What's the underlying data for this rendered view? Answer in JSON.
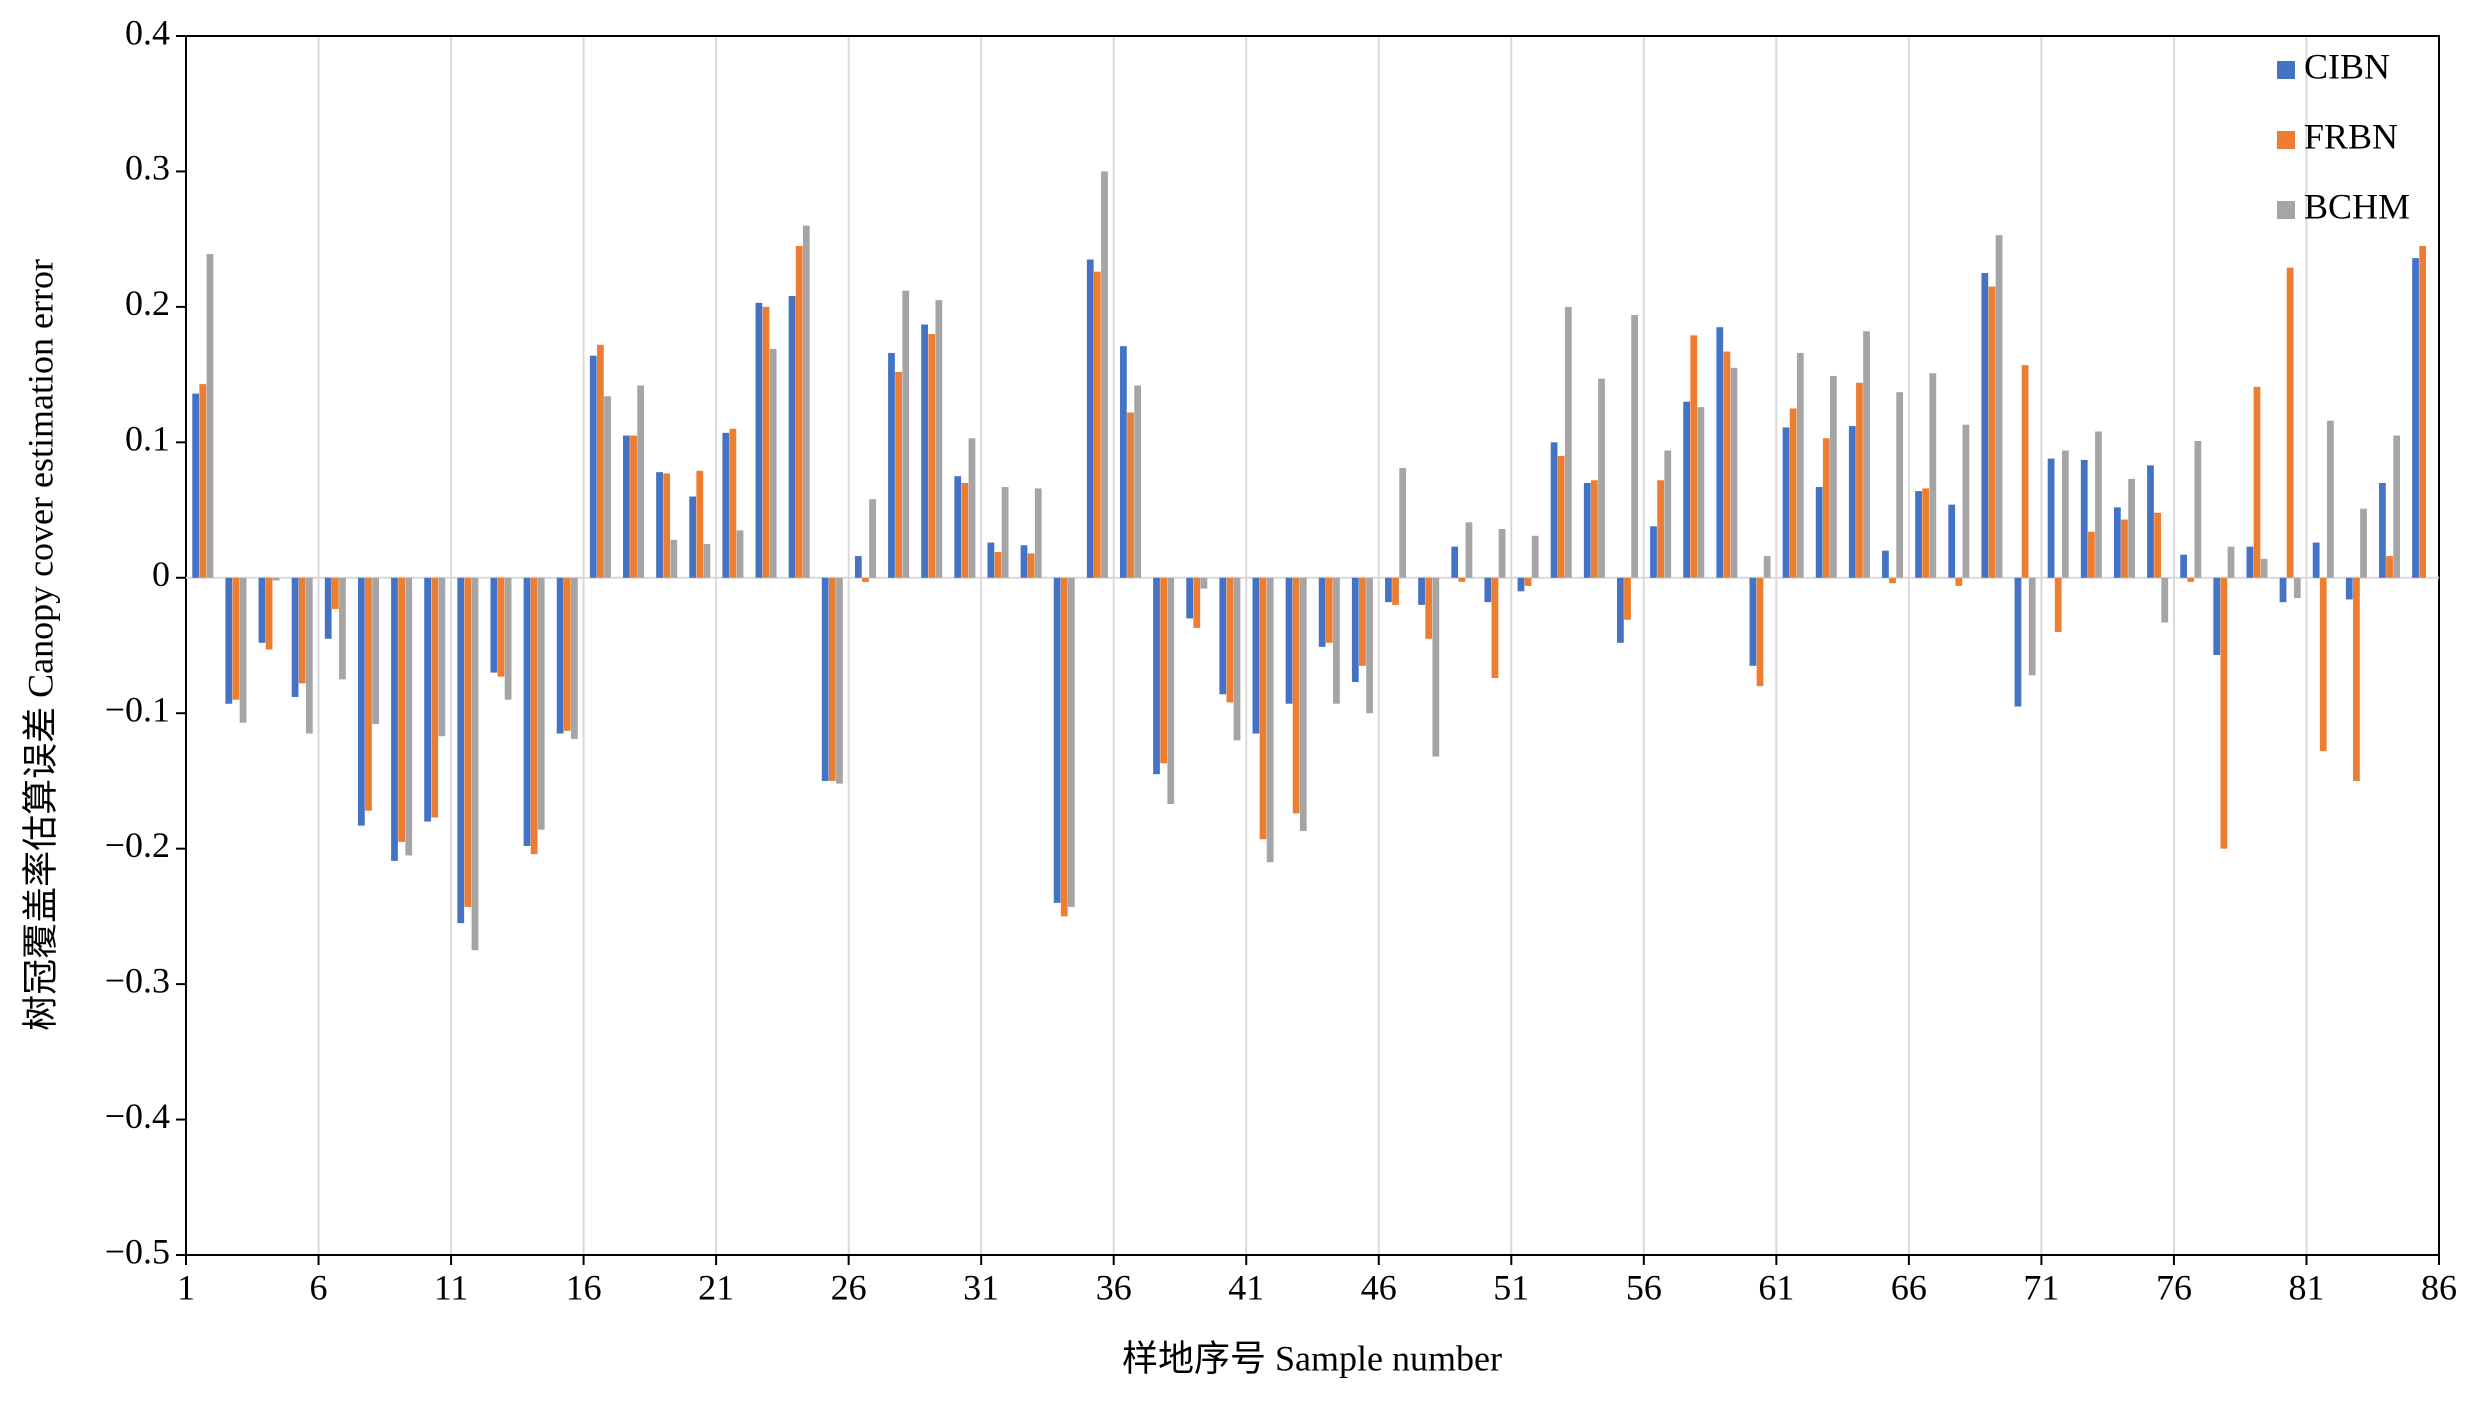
{
  "chart_data": {
    "type": "bar",
    "x_label": "样地序号  Sample number",
    "y_label": "树冠覆盖率估算误差  Canopy cover estimation error",
    "xlim": [
      1,
      86
    ],
    "xticks": [
      1,
      6,
      11,
      16,
      21,
      26,
      31,
      36,
      41,
      46,
      51,
      56,
      61,
      66,
      71,
      76,
      81,
      86
    ],
    "ylim": [
      -0.5,
      0.4
    ],
    "yticks": [
      {
        "value": -0.5,
        "label": "−0.5"
      },
      {
        "value": -0.4,
        "label": "−0.4"
      },
      {
        "value": -0.3,
        "label": "−0.3"
      },
      {
        "value": -0.2,
        "label": "−0.2"
      },
      {
        "value": -0.1,
        "label": "−0.1"
      },
      0,
      0.1,
      0.2,
      0.3,
      0.4
    ],
    "grid": "x",
    "legend": "upper right",
    "series": [
      {
        "name": "CIBN",
        "color": "#4472c4",
        "values": [
          0.136,
          -0.093,
          -0.048,
          -0.088,
          -0.045,
          -0.183,
          -0.209,
          -0.18,
          -0.255,
          -0.07,
          -0.198,
          -0.115,
          0.164,
          0.105,
          0.078,
          0.06,
          0.107,
          0.203,
          0.208,
          -0.15,
          0.016,
          0.166,
          0.187,
          0.075,
          0.026,
          0.024,
          -0.24,
          0.235,
          0.171,
          -0.145,
          -0.03,
          -0.086,
          -0.115,
          -0.093,
          -0.051,
          -0.077,
          -0.018,
          -0.02,
          0.023,
          -0.018,
          -0.01,
          0.1,
          0.07,
          -0.048,
          0.038,
          0.13,
          0.185,
          -0.065,
          0.111,
          0.067,
          0.112,
          0.02,
          0.064,
          0.054,
          0.225,
          -0.095,
          0.088,
          0.087,
          0.052,
          0.083,
          0.017,
          -0.057,
          0.023,
          -0.018,
          0.026,
          -0.016,
          0.07,
          0.236
        ]
      },
      {
        "name": "FRBN",
        "color": "#ed7d31",
        "values": [
          0.143,
          -0.09,
          -0.053,
          -0.078,
          -0.023,
          -0.172,
          -0.195,
          -0.177,
          -0.243,
          -0.073,
          -0.204,
          -0.113,
          0.172,
          0.105,
          0.077,
          0.079,
          0.11,
          0.2,
          0.245,
          -0.15,
          -0.003,
          0.152,
          0.18,
          0.07,
          0.019,
          0.018,
          -0.25,
          0.226,
          0.122,
          -0.137,
          -0.037,
          -0.092,
          -0.193,
          -0.174,
          -0.048,
          -0.065,
          -0.02,
          -0.045,
          -0.003,
          -0.074,
          -0.006,
          0.09,
          0.072,
          -0.031,
          0.072,
          0.179,
          0.167,
          -0.08,
          0.125,
          0.103,
          0.144,
          -0.004,
          0.066,
          -0.006,
          0.215,
          0.157,
          -0.04,
          0.034,
          0.043,
          0.048,
          -0.003,
          -0.2,
          0.141,
          0.229,
          -0.128,
          -0.15,
          0.016,
          0.245
        ]
      },
      {
        "name": "BCHM",
        "color": "#a5a5a5",
        "values": [
          0.239,
          -0.107,
          -0.002,
          -0.115,
          -0.075,
          -0.108,
          -0.205,
          -0.117,
          -0.275,
          -0.09,
          -0.186,
          -0.119,
          0.134,
          0.142,
          0.028,
          0.025,
          0.035,
          0.169,
          0.26,
          -0.152,
          0.058,
          0.212,
          0.205,
          0.103,
          0.067,
          0.066,
          -0.243,
          0.3,
          0.142,
          -0.167,
          -0.008,
          -0.12,
          -0.21,
          -0.187,
          -0.093,
          -0.1,
          0.081,
          -0.132,
          0.041,
          0.036,
          0.031,
          0.2,
          0.147,
          0.194,
          0.094,
          0.126,
          0.155,
          0.016,
          0.166,
          0.149,
          0.182,
          0.137,
          0.151,
          0.113,
          0.253,
          -0.072,
          0.094,
          0.108,
          0.073,
          -0.033,
          0.101,
          0.023,
          0.014,
          -0.015,
          0.116,
          0.051,
          0.105,
          0
        ]
      }
    ]
  }
}
